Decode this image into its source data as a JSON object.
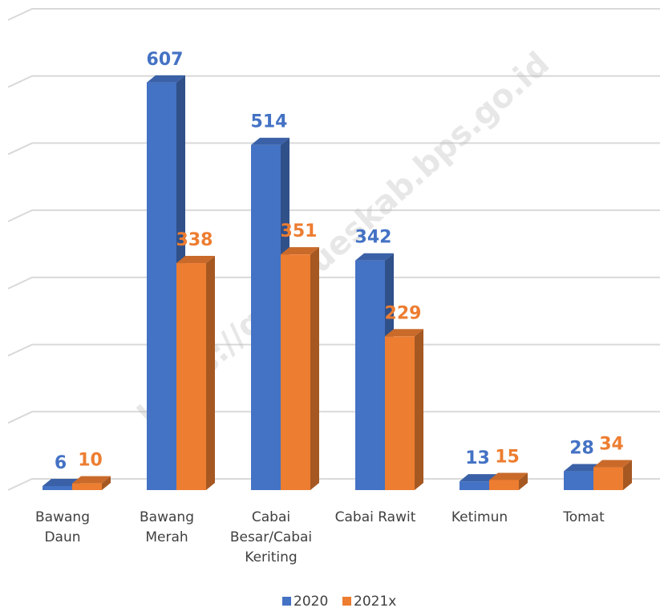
{
  "chart_data": {
    "type": "bar3d",
    "categories": [
      "Bawang Daun",
      "Bawang Merah",
      "Cabai Besar/Cabai Keriting",
      "Cabai Rawit",
      "Ketimun",
      "Tomat"
    ],
    "series": [
      {
        "name": "2020",
        "color": "#4472c4",
        "values": [
          6,
          607,
          514,
          342,
          13,
          28
        ]
      },
      {
        "name": "2021x",
        "color": "#ed7d31",
        "values": [
          10,
          338,
          351,
          229,
          15,
          34
        ]
      }
    ],
    "ylim": [
      0,
      700
    ],
    "yticks": [
      0,
      100,
      200,
      300,
      400,
      500,
      600,
      700
    ],
    "grid": true,
    "legend": "bottom",
    "watermark": "https://gayolueskab.bps.go.id"
  }
}
